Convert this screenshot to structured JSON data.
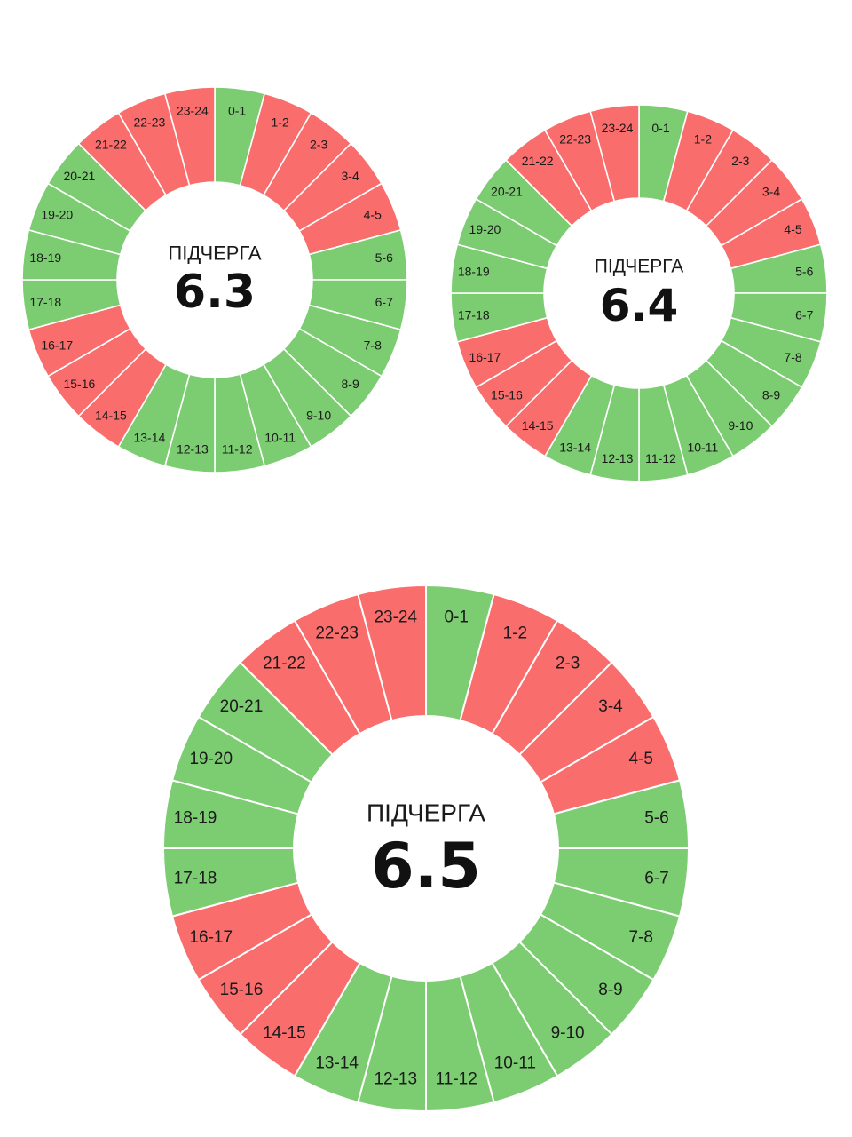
{
  "colors": {
    "on": "#7ccc72",
    "off": "#f96d6d",
    "divider": "#ffffff"
  },
  "legend_semantics": {
    "on": "green segment",
    "off": "red segment"
  },
  "chart_data": [
    {
      "type": "pie",
      "title": "ПІДЧЕРГА",
      "value": "6.3",
      "categories": [
        "0-1",
        "1-2",
        "2-3",
        "3-4",
        "4-5",
        "5-6",
        "6-7",
        "7-8",
        "8-9",
        "9-10",
        "10-11",
        "11-12",
        "12-13",
        "13-14",
        "14-15",
        "15-16",
        "16-17",
        "17-18",
        "18-19",
        "19-20",
        "20-21",
        "21-22",
        "22-23",
        "23-24"
      ],
      "states": [
        "on",
        "off",
        "off",
        "off",
        "off",
        "on",
        "on",
        "on",
        "on",
        "on",
        "on",
        "on",
        "on",
        "on",
        "off",
        "off",
        "off",
        "on",
        "on",
        "on",
        "on",
        "off",
        "off",
        "off"
      ]
    },
    {
      "type": "pie",
      "title": "ПІДЧЕРГА",
      "value": "6.4",
      "categories": [
        "0-1",
        "1-2",
        "2-3",
        "3-4",
        "4-5",
        "5-6",
        "6-7",
        "7-8",
        "8-9",
        "9-10",
        "10-11",
        "11-12",
        "12-13",
        "13-14",
        "14-15",
        "15-16",
        "16-17",
        "17-18",
        "18-19",
        "19-20",
        "20-21",
        "21-22",
        "22-23",
        "23-24"
      ],
      "states": [
        "on",
        "off",
        "off",
        "off",
        "off",
        "on",
        "on",
        "on",
        "on",
        "on",
        "on",
        "on",
        "on",
        "on",
        "off",
        "off",
        "off",
        "on",
        "on",
        "on",
        "on",
        "off",
        "off",
        "off"
      ]
    },
    {
      "type": "pie",
      "title": "ПІДЧЕРГА",
      "value": "6.5",
      "categories": [
        "0-1",
        "1-2",
        "2-3",
        "3-4",
        "4-5",
        "5-6",
        "6-7",
        "7-8",
        "8-9",
        "9-10",
        "10-11",
        "11-12",
        "12-13",
        "13-14",
        "14-15",
        "15-16",
        "16-17",
        "17-18",
        "18-19",
        "19-20",
        "20-21",
        "21-22",
        "22-23",
        "23-24"
      ],
      "states": [
        "on",
        "off",
        "off",
        "off",
        "off",
        "on",
        "on",
        "on",
        "on",
        "on",
        "on",
        "on",
        "on",
        "on",
        "off",
        "off",
        "off",
        "on",
        "on",
        "on",
        "on",
        "off",
        "off",
        "off"
      ]
    }
  ]
}
